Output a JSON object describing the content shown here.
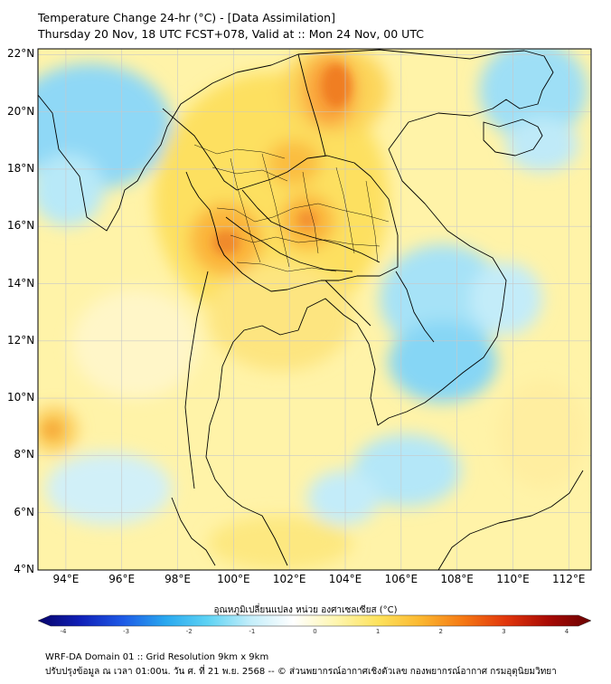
{
  "title": {
    "line1": "Temperature Change 24-hr (°C) - [Data Assimilation]",
    "line2": "Thursday 20 Nov, 18 UTC FCST+078, Valid at :: Mon 24 Nov, 00 UTC"
  },
  "map": {
    "lat_labels": [
      "22°N",
      "20°N",
      "18°N",
      "16°N",
      "14°N",
      "12°N",
      "10°N",
      "8°N",
      "6°N",
      "4°N"
    ],
    "lon_labels": [
      "94°E",
      "96°E",
      "98°E",
      "100°E",
      "102°E",
      "104°E",
      "106°E",
      "108°E",
      "110°E",
      "112°E"
    ],
    "lat_range": [
      4,
      22.2
    ],
    "lon_range": [
      93,
      112.8
    ],
    "colors": {
      "grid": "#c8c8c8",
      "border": "#000000",
      "ocean_cool": "#9fdcf5",
      "warm": "#ffd24a",
      "hot": "#f07a10"
    }
  },
  "colorbar": {
    "title": "อุณหภูมิเปลี่ยนแปลง หน่วย องศาเซลเซียส (°C)",
    "ticks": [
      "-4",
      "-3",
      "-2",
      "-1",
      "0",
      "1",
      "2",
      "3",
      "4"
    ],
    "range": [
      -4,
      4
    ],
    "stops": [
      "#08046a",
      "#1020b8",
      "#1e5ae6",
      "#29a8ef",
      "#5ed3f4",
      "#c4eefa",
      "#ffffff",
      "#fff6b0",
      "#fde25c",
      "#fbb730",
      "#f57814",
      "#e1360c",
      "#a80a04",
      "#6a0202"
    ]
  },
  "footer": {
    "line1": "WRF-DA Domain 01 :: Grid Resolution 9km x 9km",
    "line2": "ปรับปรุงข้อมูล ณ เวลา 01:00น. วัน ศ. ที่ 21 พ.ย. 2568 -- © ส่วนพยากรณ์อากาศเชิงตัวเลข กองพยากรณ์อากาศ กรมอุตุนิยมวิทยา"
  }
}
